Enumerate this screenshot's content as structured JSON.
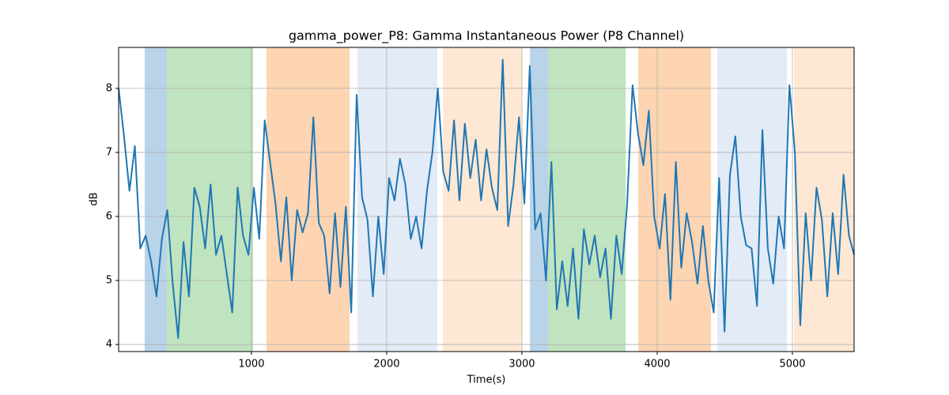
{
  "chart_data": {
    "type": "line",
    "title": "gamma_power_P8: Gamma Instantaneous Power (P8 Channel)",
    "x_label": "Time(s)",
    "y_label": "dB",
    "xlim": [
      18,
      5456
    ],
    "ylim": [
      3.89,
      8.64
    ],
    "xticks": [
      1000,
      2000,
      3000,
      4000,
      5000
    ],
    "yticks": [
      4,
      5,
      6,
      7,
      8
    ],
    "grid": true,
    "color": "#1f77b4",
    "spans": [
      {
        "start": 211,
        "end": 375,
        "color": "#b9d3e8"
      },
      {
        "start": 375,
        "end": 1012,
        "color": "#c0e3c0"
      },
      {
        "start": 1111,
        "end": 1726,
        "color": "#fed5b2"
      },
      {
        "start": 1784,
        "end": 2375,
        "color": "#e3ebf6"
      },
      {
        "start": 2416,
        "end": 3000,
        "color": "#fee8d4"
      },
      {
        "start": 3059,
        "end": 3193,
        "color": "#b9d3e8"
      },
      {
        "start": 3193,
        "end": 3767,
        "color": "#c0e3c0"
      },
      {
        "start": 3860,
        "end": 4398,
        "color": "#fed5b2"
      },
      {
        "start": 4445,
        "end": 4960,
        "color": "#e3ebf6"
      },
      {
        "start": 5012,
        "end": 5456,
        "color": "#fee8d4"
      }
    ],
    "x": [
      18,
      58,
      98,
      138,
      178,
      218,
      258,
      298,
      338,
      378,
      418,
      458,
      498,
      538,
      578,
      618,
      658,
      698,
      738,
      778,
      818,
      858,
      898,
      938,
      978,
      1018,
      1058,
      1098,
      1138,
      1178,
      1218,
      1258,
      1298,
      1338,
      1378,
      1418,
      1458,
      1498,
      1538,
      1578,
      1618,
      1658,
      1698,
      1738,
      1778,
      1818,
      1858,
      1898,
      1938,
      1978,
      2018,
      2058,
      2098,
      2138,
      2178,
      2218,
      2258,
      2298,
      2338,
      2378,
      2418,
      2458,
      2498,
      2538,
      2578,
      2618,
      2658,
      2698,
      2738,
      2778,
      2818,
      2858,
      2898,
      2938,
      2978,
      3018,
      3058,
      3098,
      3138,
      3178,
      3218,
      3258,
      3298,
      3338,
      3378,
      3418,
      3458,
      3498,
      3538,
      3578,
      3618,
      3658,
      3698,
      3738,
      3778,
      3818,
      3858,
      3898,
      3938,
      3978,
      4018,
      4058,
      4098,
      4138,
      4178,
      4218,
      4258,
      4298,
      4338,
      4378,
      4418,
      4458,
      4498,
      4538,
      4578,
      4618,
      4658,
      4698,
      4738,
      4778,
      4818,
      4858,
      4898,
      4938,
      4978,
      5018,
      5058,
      5098,
      5138,
      5178,
      5218,
      5258,
      5298,
      5338,
      5378,
      5418,
      5456
    ],
    "values": [
      8.0,
      7.25,
      6.4,
      7.1,
      5.5,
      5.7,
      5.3,
      4.75,
      5.65,
      6.1,
      4.95,
      4.1,
      5.6,
      4.75,
      6.45,
      6.15,
      5.5,
      6.5,
      5.4,
      5.7,
      5.1,
      4.5,
      6.45,
      5.7,
      5.4,
      6.45,
      5.65,
      7.5,
      6.85,
      6.2,
      5.3,
      6.3,
      5.0,
      6.1,
      5.75,
      6.05,
      7.55,
      5.9,
      5.7,
      4.8,
      6.05,
      4.9,
      6.15,
      4.5,
      7.9,
      6.3,
      5.95,
      4.75,
      6.0,
      5.1,
      6.6,
      6.25,
      6.9,
      6.5,
      5.65,
      6.0,
      5.5,
      6.4,
      7.0,
      8.0,
      6.7,
      6.4,
      7.5,
      6.25,
      7.45,
      6.6,
      7.2,
      6.25,
      7.05,
      6.45,
      6.1,
      8.45,
      5.85,
      6.5,
      7.55,
      6.2,
      8.35,
      5.8,
      6.05,
      5.0,
      6.85,
      4.55,
      5.3,
      4.6,
      5.5,
      4.4,
      5.8,
      5.25,
      5.7,
      5.05,
      5.5,
      4.4,
      5.7,
      5.1,
      6.2,
      8.05,
      7.3,
      6.8,
      7.65,
      6.0,
      5.5,
      6.35,
      4.7,
      6.85,
      5.2,
      6.05,
      5.6,
      4.95,
      5.85,
      5.0,
      4.5,
      6.6,
      4.2,
      6.65,
      7.25,
      6.0,
      5.55,
      5.5,
      4.6,
      7.35,
      5.5,
      4.95,
      6.0,
      5.5,
      8.05,
      7.0,
      4.3,
      6.05,
      5.0,
      6.45,
      5.95,
      4.75,
      6.05,
      5.1,
      6.65,
      5.7,
      5.4
    ]
  }
}
